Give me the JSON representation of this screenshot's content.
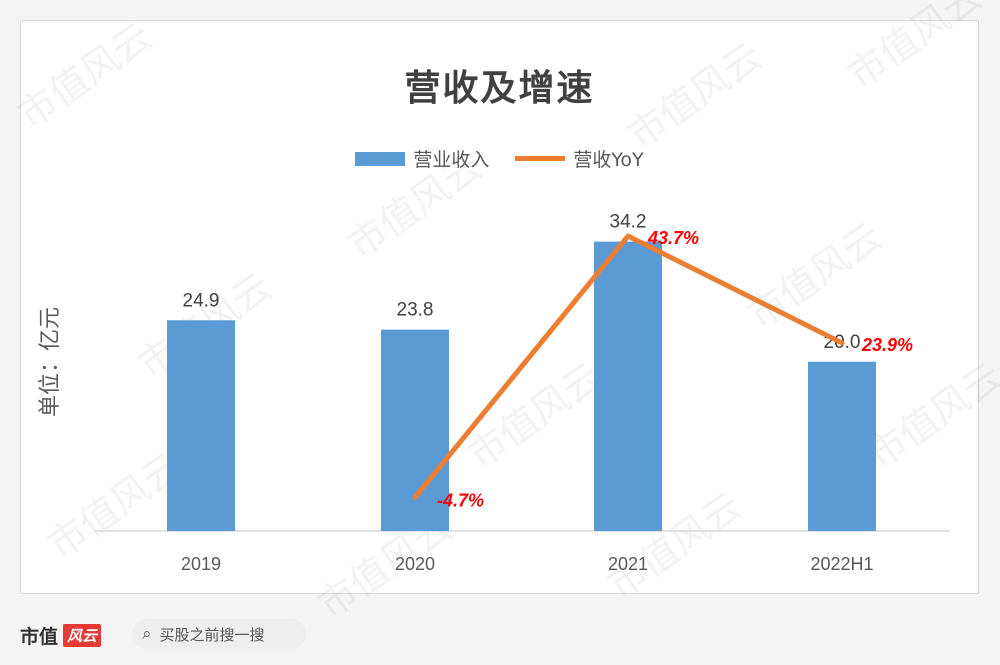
{
  "chart_data": {
    "type": "bar",
    "title": "营收及增速",
    "ylabel": "单位：亿元",
    "categories": [
      "2019",
      "2020",
      "2021",
      "2022H1"
    ],
    "series": [
      {
        "name": "营业收入",
        "kind": "bar",
        "color": "#5b9bd5",
        "values": [
          24.9,
          23.8,
          34.2,
          20.0
        ],
        "labels": [
          "24.9",
          "23.8",
          "34.2",
          "20.0"
        ]
      },
      {
        "name": "营收YoY",
        "kind": "line",
        "color": "#ed7d31",
        "values": [
          null,
          -4.7,
          43.7,
          23.9
        ],
        "labels": [
          null,
          "-4.7%",
          "43.7%",
          "23.9%"
        ],
        "label_color": "#ff0000"
      }
    ],
    "legend": "top-center",
    "grid": false
  },
  "watermark": "市值风云",
  "footer": {
    "brand": "市值",
    "brand_logo": "风云",
    "search_icon": "search-icon",
    "search_text": "买股之前搜一搜"
  }
}
